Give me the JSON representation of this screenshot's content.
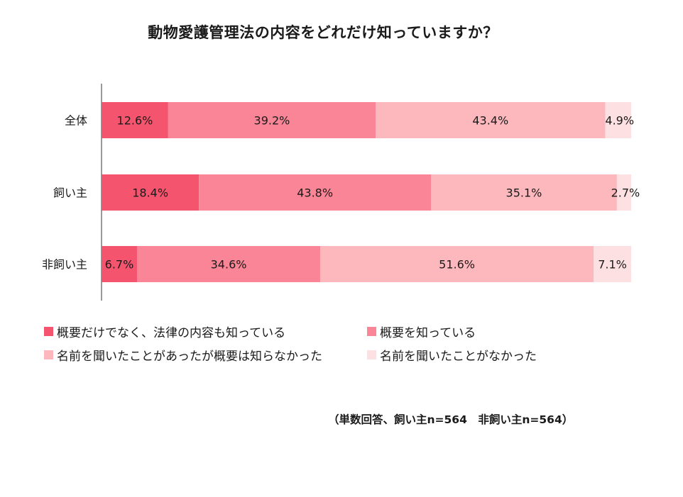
{
  "chart_data": {
    "type": "bar",
    "orientation": "horizontal-stacked-100",
    "title": "動物愛護管理法の内容をどれだけ知っていますか？",
    "categories": [
      "全体",
      "飼い主",
      "非飼い主"
    ],
    "series": [
      {
        "name": "概要だけでなく、法律の内容も知っている",
        "color": "#f5546e",
        "values": [
          12.6,
          18.4,
          6.7
        ],
        "labels": [
          "12.6%",
          "18.4%",
          "6.7%"
        ]
      },
      {
        "name": "概要を知っている",
        "color": "#f98596",
        "values": [
          39.2,
          43.8,
          34.6
        ],
        "labels": [
          "39.2%",
          "43.8%",
          "34.6%"
        ]
      },
      {
        "name": "名前を聞いたことがあったが概要は知らなかった",
        "color": "#fdb8bd",
        "values": [
          43.4,
          35.1,
          51.6
        ],
        "labels": [
          "43.4%",
          "35.1%",
          "51.6%"
        ]
      },
      {
        "name": "名前を聞いたことがなかった",
        "color": "#fde0e2",
        "values": [
          4.9,
          2.7,
          7.1
        ],
        "labels": [
          "4.9%",
          "2.7%",
          "7.1%"
        ]
      }
    ],
    "xlim": [
      0,
      100
    ],
    "grid": false,
    "legend_position": "bottom"
  },
  "note": "（単数回答、飼い主n=564　非飼い主n=564）"
}
